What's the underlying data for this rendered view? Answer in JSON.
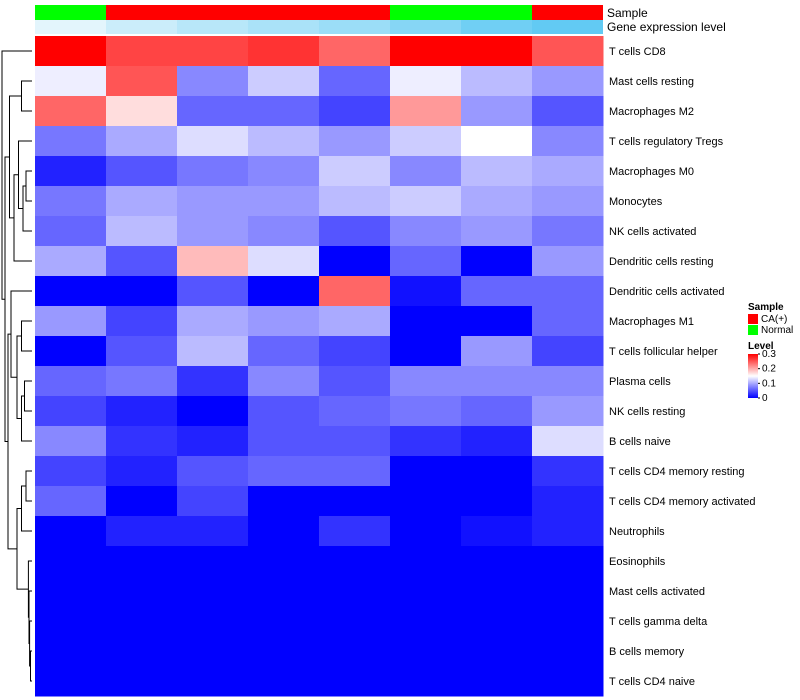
{
  "chart_data": {
    "type": "heatmap",
    "top_annotations": [
      {
        "label": "Sample",
        "groups": [
          "Normal",
          "CA(+)",
          "CA(+)",
          "CA(+)",
          "CA(+)",
          "Normal",
          "Normal",
          "CA(+)"
        ]
      },
      {
        "label": "Gene expression level",
        "values": [
          0.05,
          0.22,
          0.35,
          0.45,
          0.55,
          0.7,
          0.85,
          0.95
        ],
        "colors": [
          "#eaf7fc",
          "#5bc8f2"
        ]
      }
    ],
    "rows": [
      "T cells CD8",
      "Mast cells resting",
      "Macrophages M2",
      "T cells regulatory  Tregs",
      "Macrophages M0",
      "Monocytes",
      "NK cells activated",
      "Dendritic cells resting",
      "Dendritic cells activated",
      "Macrophages M1",
      "T cells follicular helper",
      "Plasma cells",
      "NK cells resting",
      "B cells naive",
      "T cells CD4 memory resting",
      "T cells CD4 memory activated",
      "Neutrophils",
      "Eosinophils",
      "Mast cells activated",
      "T cells gamma delta",
      "B cells memory",
      "T cells CD4 naive"
    ],
    "columns": 8,
    "values": [
      [
        0.3,
        0.26,
        0.26,
        0.27,
        0.24,
        0.3,
        0.3,
        0.25
      ],
      [
        0.14,
        0.25,
        0.08,
        0.12,
        0.06,
        0.14,
        0.11,
        0.09
      ],
      [
        0.24,
        0.17,
        0.06,
        0.06,
        0.04,
        0.21,
        0.09,
        0.05
      ],
      [
        0.07,
        0.1,
        0.13,
        0.11,
        0.09,
        0.12,
        0.15,
        0.08
      ],
      [
        0.02,
        0.05,
        0.07,
        0.08,
        0.12,
        0.08,
        0.11,
        0.1
      ],
      [
        0.07,
        0.1,
        0.09,
        0.09,
        0.11,
        0.12,
        0.1,
        0.09
      ],
      [
        0.06,
        0.11,
        0.09,
        0.08,
        0.05,
        0.08,
        0.09,
        0.07
      ],
      [
        0.1,
        0.05,
        0.19,
        0.13,
        0.0,
        0.06,
        0.0,
        0.09
      ],
      [
        0.0,
        0.0,
        0.05,
        0.0,
        0.24,
        0.01,
        0.06,
        0.06
      ],
      [
        0.09,
        0.04,
        0.1,
        0.09,
        0.1,
        0.0,
        0.0,
        0.06
      ],
      [
        0.0,
        0.05,
        0.11,
        0.06,
        0.04,
        0.0,
        0.09,
        0.04
      ],
      [
        0.06,
        0.07,
        0.03,
        0.08,
        0.05,
        0.08,
        0.08,
        0.08
      ],
      [
        0.04,
        0.02,
        0.0,
        0.05,
        0.06,
        0.07,
        0.06,
        0.09
      ],
      [
        0.08,
        0.03,
        0.02,
        0.05,
        0.05,
        0.03,
        0.02,
        0.13
      ],
      [
        0.04,
        0.02,
        0.05,
        0.06,
        0.06,
        0.0,
        0.0,
        0.03
      ],
      [
        0.06,
        0.0,
        0.04,
        0.0,
        0.0,
        0.0,
        0.0,
        0.02
      ],
      [
        0.0,
        0.02,
        0.02,
        0.0,
        0.03,
        0.0,
        0.01,
        0.02
      ],
      [
        0.0,
        0.0,
        0.0,
        0.0,
        0.0,
        0.0,
        0.0,
        0.0
      ],
      [
        0.0,
        0.0,
        0.0,
        0.0,
        0.0,
        0.0,
        0.0,
        0.0
      ],
      [
        0.0,
        0.0,
        0.0,
        0.0,
        0.0,
        0.0,
        0.0,
        0.0
      ],
      [
        0.0,
        0.0,
        0.0,
        0.0,
        0.0,
        0.0,
        0.0,
        0.0
      ],
      [
        0.0,
        0.0,
        0.0,
        0.0,
        0.0,
        0.0,
        0.0,
        0.0
      ]
    ],
    "color_scale": {
      "min": 0,
      "mid": 0.15,
      "max": 0.3,
      "low": "#0000ff",
      "midColor": "#ffffff",
      "high": "#ff0000"
    },
    "legend": {
      "sample_title": "Sample",
      "sample_items": [
        {
          "label": "CA(+)",
          "color": "#ff0000"
        },
        {
          "label": "Normal",
          "color": "#00ff00"
        }
      ],
      "level_title": "Level",
      "level_ticks": [
        "0.3",
        "0.2",
        "0.1",
        "0"
      ],
      "placement": "right"
    },
    "row_dendrogram": true,
    "group_colors": {
      "CA(+)": "#ff0000",
      "Normal": "#00ff00"
    }
  }
}
